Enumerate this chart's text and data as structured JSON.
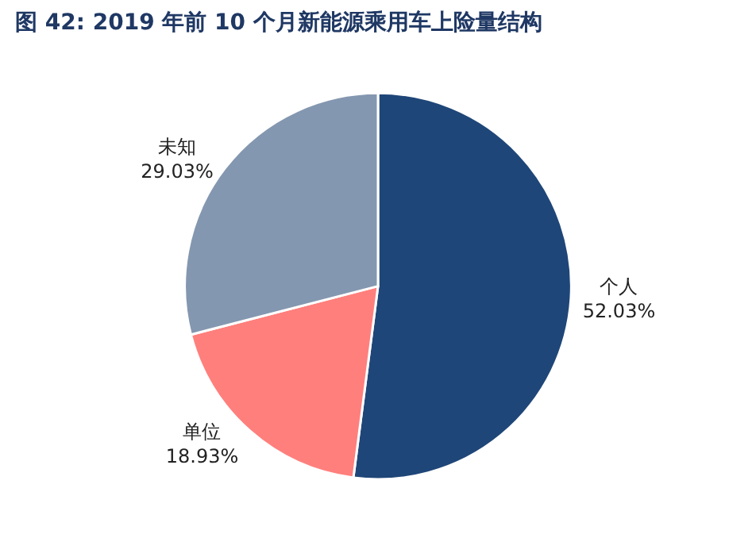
{
  "chart_data": {
    "type": "pie",
    "title": "图 42: 2019 年前 10 个月新能源乘用车上险量结构",
    "categories": [
      "个人",
      "单位",
      "未知"
    ],
    "values": [
      52.03,
      18.93,
      29.03
    ],
    "value_labels": [
      "52.03%",
      "18.93%",
      "29.03%"
    ],
    "colors": [
      "#1f4678",
      "#ff7f7c",
      "#8497b0"
    ],
    "legend": false
  }
}
